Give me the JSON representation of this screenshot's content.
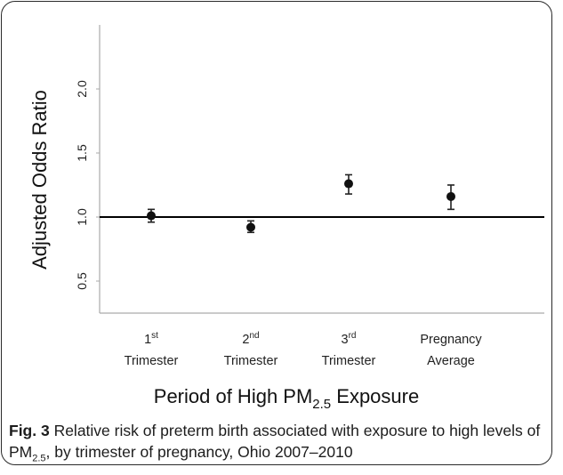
{
  "chart_data": {
    "type": "scatter",
    "subtype": "point-estimate-with-error-bars",
    "categories": [
      {
        "line1": "1",
        "sup": "st",
        "line2": "Trimester"
      },
      {
        "line1": "2",
        "sup": "nd",
        "line2": "Trimester"
      },
      {
        "line1": "3",
        "sup": "rd",
        "line2": "Trimester"
      },
      {
        "line1": "Pregnancy",
        "sup": "",
        "line2": "Average"
      }
    ],
    "series": [
      {
        "values": [
          1.01,
          0.92,
          1.26,
          1.16
        ],
        "lower": [
          0.96,
          0.88,
          1.18,
          1.06
        ],
        "upper": [
          1.06,
          0.97,
          1.33,
          1.25
        ]
      }
    ],
    "ylim": [
      0.25,
      2.5
    ],
    "yticks": [
      "0.5",
      "1.0",
      "1.5",
      "2.0"
    ],
    "reference_line": 1.0,
    "ylabel": "Adjusted Odds Ratio",
    "xlabel": {
      "prefix": "Period of High PM",
      "sub": "2.5",
      "suffix": " Exposure"
    },
    "grid": false,
    "legend": "none"
  },
  "caption": {
    "label": "Fig. 3",
    "text_a": " Relative risk of preterm birth associated with exposure to high levels of PM",
    "sub": "2.5",
    "text_b": ", by trimester of pregnancy, Ohio 2007–2010"
  }
}
